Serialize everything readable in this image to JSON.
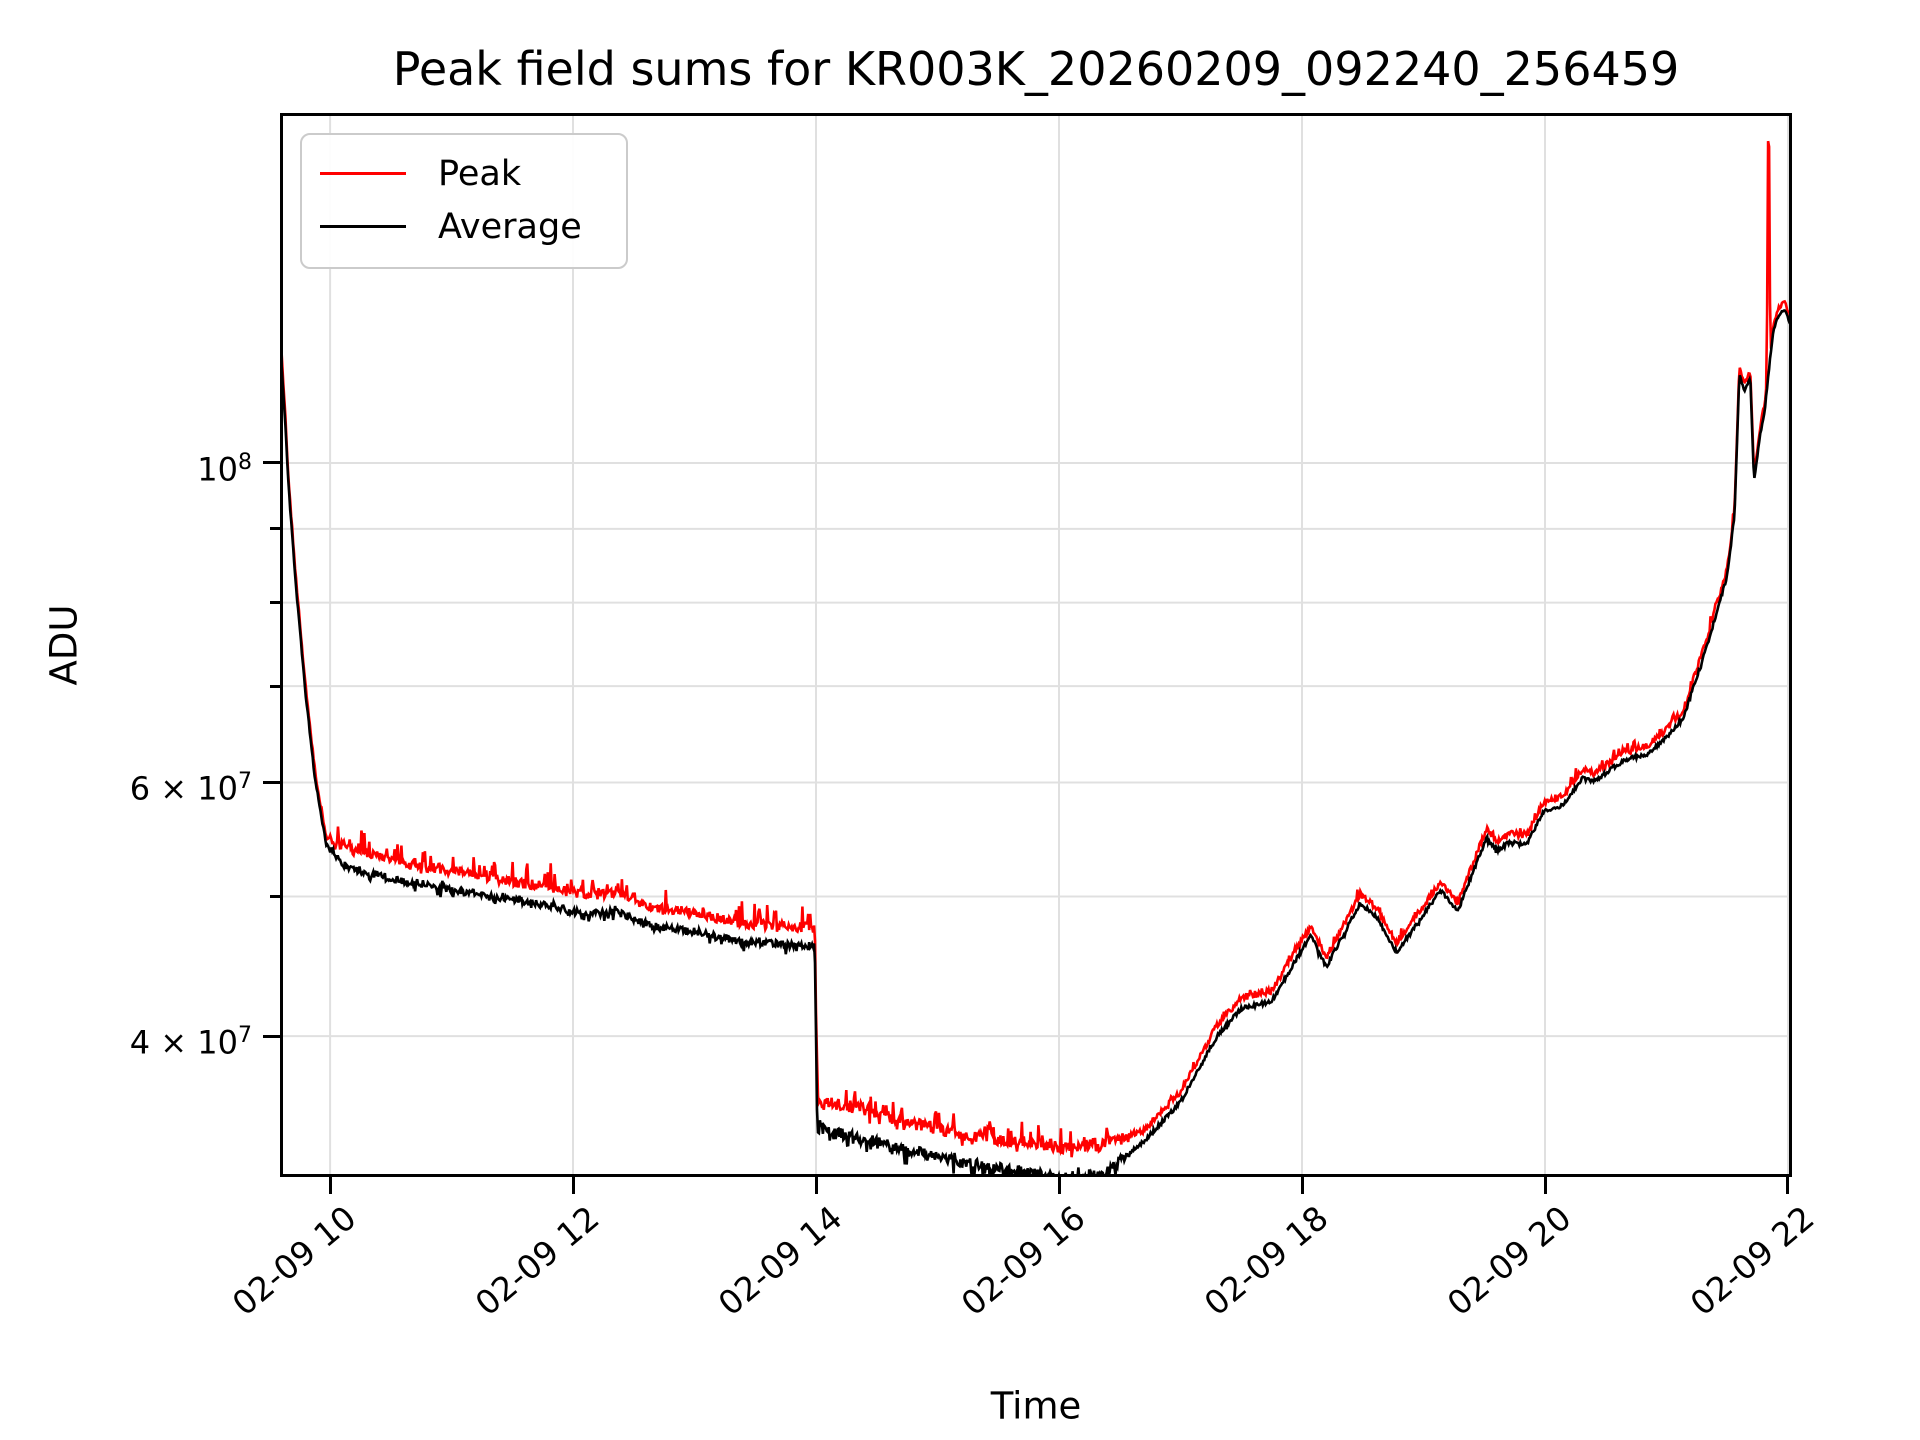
{
  "title": "Peak field sums for KR003K_20260209_092240_256459",
  "legend": {
    "items": [
      {
        "label": "Peak",
        "color": "#ff0000"
      },
      {
        "label": "Average",
        "color": "#000000"
      }
    ]
  },
  "axes": {
    "xlabel": "Time",
    "ylabel": "ADU",
    "x_ticks": [
      {
        "t": 10,
        "label": "02-09 10"
      },
      {
        "t": 12,
        "label": "02-09 12"
      },
      {
        "t": 14,
        "label": "02-09 14"
      },
      {
        "t": 16,
        "label": "02-09 16"
      },
      {
        "t": 18,
        "label": "02-09 18"
      },
      {
        "t": 20,
        "label": "02-09 20"
      },
      {
        "t": 22,
        "label": "02-09 22"
      }
    ],
    "y_major": [
      {
        "v": 100000000,
        "base": "10",
        "exp": "8"
      },
      {
        "v": 60000000,
        "base": "6 × 10",
        "exp": "7"
      },
      {
        "v": 40000000,
        "base": "4 × 10",
        "exp": "7"
      }
    ],
    "y_minor": [
      90000000,
      80000000,
      70000000,
      50000000
    ]
  },
  "chart_data": {
    "type": "line",
    "title": "Peak field sums for KR003K_20260209_092240_256459",
    "xlabel": "Time",
    "ylabel": "ADU",
    "x_unit": "hours of day on 02-09",
    "yscale": "log",
    "grid": true,
    "grid_color": "#e0e0e0",
    "legend_position": "upper left",
    "xlim": [
      9.588,
      22.033
    ],
    "ylim": [
      31930000,
      175000000
    ],
    "y_gridlines": [
      100000000,
      90000000,
      80000000,
      70000000,
      60000000,
      50000000,
      40000000
    ],
    "series": [
      {
        "name": "Peak",
        "color": "#ff0000",
        "anchors": [
          [
            9.6,
            119500000
          ],
          [
            9.63,
            108500000
          ],
          [
            9.66,
            97000000
          ],
          [
            9.72,
            83000000
          ],
          [
            9.8,
            69800000
          ],
          [
            9.88,
            60700000
          ],
          [
            9.97,
            55000000
          ],
          [
            10.15,
            53900000
          ],
          [
            10.6,
            52800000
          ],
          [
            11.0,
            52100000
          ],
          [
            11.35,
            51400000
          ],
          [
            11.8,
            50800000
          ],
          [
            12.1,
            50100000
          ],
          [
            12.35,
            50300000
          ],
          [
            12.7,
            49000000
          ],
          [
            13.0,
            48700000
          ],
          [
            13.4,
            47900000
          ],
          [
            13.75,
            47700000
          ],
          [
            13.99,
            47500000
          ],
          [
            14.01,
            36100000
          ],
          [
            14.4,
            35600000
          ],
          [
            14.8,
            34800000
          ],
          [
            15.2,
            34200000
          ],
          [
            15.6,
            33800000
          ],
          [
            16.0,
            33500000
          ],
          [
            16.35,
            33600000
          ],
          [
            16.7,
            34400000
          ],
          [
            17.0,
            36600000
          ],
          [
            17.3,
            40700000
          ],
          [
            17.5,
            42500000
          ],
          [
            17.75,
            43000000
          ],
          [
            18.07,
            47700000
          ],
          [
            18.2,
            45400000
          ],
          [
            18.48,
            50200000
          ],
          [
            18.62,
            49000000
          ],
          [
            18.78,
            46400000
          ],
          [
            19.14,
            51200000
          ],
          [
            19.28,
            49500000
          ],
          [
            19.52,
            55800000
          ],
          [
            19.6,
            54600000
          ],
          [
            19.71,
            55300000
          ],
          [
            19.85,
            55100000
          ],
          [
            19.98,
            58000000
          ],
          [
            20.15,
            58700000
          ],
          [
            20.31,
            61300000
          ],
          [
            20.4,
            60900000
          ],
          [
            20.64,
            62900000
          ],
          [
            20.86,
            63700000
          ],
          [
            21.0,
            65400000
          ],
          [
            21.14,
            67400000
          ],
          [
            21.34,
            75900000
          ],
          [
            21.5,
            84400000
          ],
          [
            21.56,
            93000000
          ],
          [
            21.6,
            116800000
          ],
          [
            21.64,
            113300000
          ],
          [
            21.69,
            115800000
          ],
          [
            21.72,
            98200000
          ],
          [
            21.77,
            105800000
          ],
          [
            21.81,
            110300000
          ],
          [
            21.825,
            113500000
          ],
          [
            21.84,
            190000000
          ],
          [
            21.855,
            119000000
          ],
          [
            21.88,
            125000000
          ],
          [
            21.92,
            128000000
          ],
          [
            21.97,
            129500000
          ],
          [
            22.0,
            127500000
          ],
          [
            22.03,
            125500000
          ]
        ],
        "noise": [
          {
            "t0": 9.58,
            "t1": 10.0,
            "amp": 0.004,
            "upP": 0,
            "up": 0,
            "dnP": 0,
            "dn": 0
          },
          {
            "t0": 10.0,
            "t1": 14.0,
            "amp": 0.008,
            "upP": 0.18,
            "up": 0.033,
            "dnP": 0.05,
            "dn": 0.01
          },
          {
            "t0": 14.0,
            "t1": 16.6,
            "amp": 0.01,
            "upP": 0.18,
            "up": 0.035,
            "dnP": 0.1,
            "dn": 0.012
          },
          {
            "t0": 16.6,
            "t1": 21.55,
            "amp": 0.005,
            "upP": 0.12,
            "up": 0.012,
            "dnP": 0,
            "dn": 0
          },
          {
            "t0": 21.55,
            "t1": 22.04,
            "amp": 0.003,
            "upP": 0,
            "up": 0,
            "dnP": 0,
            "dn": 0
          }
        ]
      },
      {
        "name": "Average",
        "color": "#000000",
        "anchors": [
          [
            9.6,
            117000000
          ],
          [
            9.63,
            107000000
          ],
          [
            9.66,
            96000000
          ],
          [
            9.72,
            82000000
          ],
          [
            9.8,
            69000000
          ],
          [
            9.88,
            60000000
          ],
          [
            9.97,
            54300000
          ],
          [
            10.15,
            52300000
          ],
          [
            10.6,
            51300000
          ],
          [
            11.0,
            50600000
          ],
          [
            11.35,
            49900000
          ],
          [
            11.8,
            49300000
          ],
          [
            12.1,
            48600000
          ],
          [
            12.35,
            48800000
          ],
          [
            12.7,
            47600000
          ],
          [
            13.0,
            47300000
          ],
          [
            13.4,
            46500000
          ],
          [
            13.75,
            46300000
          ],
          [
            13.99,
            46100000
          ],
          [
            14.01,
            34500000
          ],
          [
            14.4,
            34000000
          ],
          [
            14.8,
            33300000
          ],
          [
            15.2,
            32700000
          ],
          [
            15.6,
            32300000
          ],
          [
            16.0,
            32000000
          ],
          [
            16.35,
            32100000
          ],
          [
            16.7,
            33800000
          ],
          [
            17.0,
            36000000
          ],
          [
            17.3,
            40000000
          ],
          [
            17.5,
            41800000
          ],
          [
            17.75,
            42300000
          ],
          [
            18.07,
            47000000
          ],
          [
            18.2,
            44700000
          ],
          [
            18.48,
            49500000
          ],
          [
            18.62,
            48300000
          ],
          [
            18.78,
            45700000
          ],
          [
            19.14,
            50500000
          ],
          [
            19.28,
            48800000
          ],
          [
            19.52,
            55000000
          ],
          [
            19.6,
            53800000
          ],
          [
            19.71,
            54500000
          ],
          [
            19.85,
            54300000
          ],
          [
            19.98,
            57200000
          ],
          [
            20.15,
            57900000
          ],
          [
            20.31,
            60500000
          ],
          [
            20.4,
            60100000
          ],
          [
            20.64,
            62100000
          ],
          [
            20.86,
            62900000
          ],
          [
            21.0,
            64500000
          ],
          [
            21.14,
            66500000
          ],
          [
            21.34,
            75000000
          ],
          [
            21.5,
            83500000
          ],
          [
            21.56,
            92000000
          ],
          [
            21.6,
            115500000
          ],
          [
            21.64,
            112000000
          ],
          [
            21.69,
            114500000
          ],
          [
            21.72,
            97000000
          ],
          [
            21.77,
            104500000
          ],
          [
            21.81,
            109000000
          ],
          [
            21.85,
            117500000
          ],
          [
            21.88,
            123500000
          ],
          [
            21.92,
            126500000
          ],
          [
            21.97,
            128000000
          ],
          [
            22.0,
            126000000
          ],
          [
            22.03,
            124000000
          ]
        ],
        "noise": [
          {
            "t0": 9.58,
            "t1": 10.0,
            "amp": 0.003,
            "upP": 0,
            "up": 0,
            "dnP": 0,
            "dn": 0
          },
          {
            "t0": 10.0,
            "t1": 14.0,
            "amp": 0.006,
            "upP": 0.05,
            "up": 0.006,
            "dnP": 0.12,
            "dn": 0.012
          },
          {
            "t0": 14.0,
            "t1": 16.6,
            "amp": 0.008,
            "upP": 0.05,
            "up": 0.008,
            "dnP": 0.25,
            "dn": 0.02
          },
          {
            "t0": 16.6,
            "t1": 21.55,
            "amp": 0.0035,
            "upP": 0,
            "up": 0,
            "dnP": 0.08,
            "dn": 0.006
          },
          {
            "t0": 21.55,
            "t1": 22.04,
            "amp": 0.002,
            "upP": 0,
            "up": 0,
            "dnP": 0,
            "dn": 0
          }
        ]
      }
    ]
  }
}
